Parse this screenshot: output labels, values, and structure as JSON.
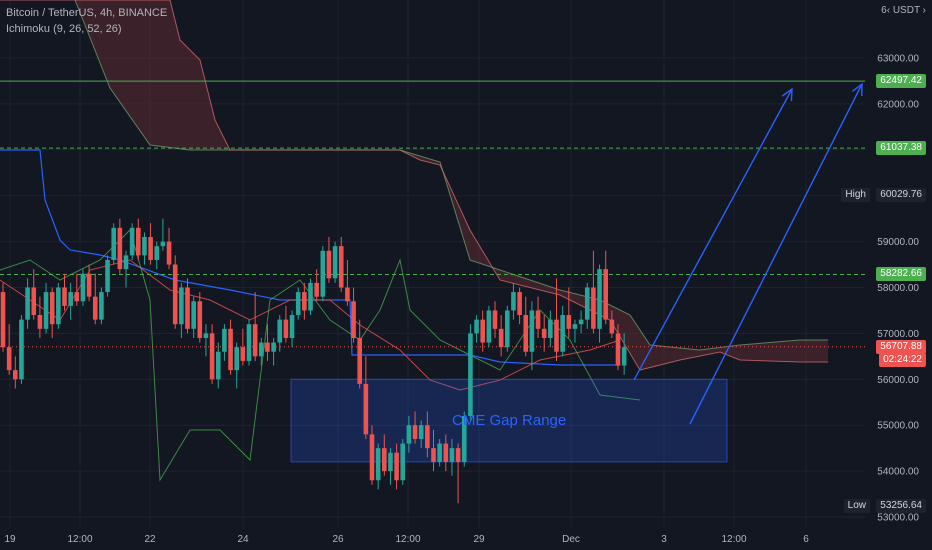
{
  "header": {
    "symbol_line": "Bitcoin / TetherUS, 4h, BINANCE",
    "indicator_line": "Ichimoku (9, 26, 52, 26)"
  },
  "price_scale": {
    "currency_label": "USDT",
    "currency_prefix": "6‹",
    "ticks": [
      "63000.00",
      "62000.00",
      "61000.00",
      "60000.00",
      "59000.00",
      "58000.00",
      "57000.00",
      "56000.00",
      "55000.00",
      "54000.00",
      "53000.00"
    ]
  },
  "time_axis": {
    "labels": [
      "19",
      "12:00",
      "22",
      "24",
      "26",
      "12:00",
      "29",
      "Dec",
      "3",
      "12:00",
      "6"
    ]
  },
  "price_labels": {
    "level_1": "62497.42",
    "level_2": "61037.38",
    "high_label": "High",
    "high_value": "60029.76",
    "level_3": "58282.66",
    "current_price": "56707.88",
    "countdown": "02:24:22",
    "low_label": "Low",
    "low_value": "53256.64"
  },
  "annotation": {
    "text": "CME Gap Range"
  },
  "colors": {
    "background": "#131722",
    "up": "#26a69a",
    "down": "#ef5350",
    "level_line": "#4caf50",
    "annotation": "#2962ff",
    "cloud_bearish": "#5d2a2f",
    "cloud_bullish": "#1e3a2c"
  },
  "chart_data": {
    "type": "candlestick",
    "title": "Bitcoin / TetherUS, 4h, BINANCE",
    "ylim": [
      53000,
      64000
    ],
    "grid": true,
    "horizontal_levels": [
      62497.42,
      61037.38,
      58282.66
    ],
    "high": 60029.76,
    "low": 53256.64,
    "last_price": 56707.88,
    "gap_range": [
      54200,
      56000
    ],
    "candles": [
      [
        57900,
        58100,
        56600,
        56700
      ],
      [
        56700,
        57200,
        56100,
        56200
      ],
      [
        56200,
        56500,
        55800,
        56000
      ],
      [
        56000,
        57400,
        55900,
        57300
      ],
      [
        57300,
        58200,
        57100,
        58000
      ],
      [
        58000,
        58400,
        57300,
        57400
      ],
      [
        57400,
        57800,
        56900,
        57100
      ],
      [
        57100,
        58100,
        57000,
        57900
      ],
      [
        57900,
        58000,
        56900,
        57200
      ],
      [
        57200,
        58100,
        57100,
        58000
      ],
      [
        58000,
        58300,
        57500,
        57600
      ],
      [
        57600,
        58100,
        57300,
        57900
      ],
      [
        57900,
        58300,
        57600,
        57700
      ],
      [
        57700,
        58400,
        57600,
        58300
      ],
      [
        58300,
        58500,
        57700,
        57800
      ],
      [
        57800,
        58300,
        57200,
        57300
      ],
      [
        57300,
        58000,
        57200,
        57900
      ],
      [
        57900,
        58700,
        57800,
        58600
      ],
      [
        58600,
        59400,
        58500,
        59300
      ],
      [
        59300,
        59500,
        58300,
        58400
      ],
      [
        58400,
        58800,
        58000,
        58700
      ],
      [
        58700,
        59400,
        58600,
        59300
      ],
      [
        59300,
        59500,
        58600,
        58700
      ],
      [
        58700,
        59200,
        58500,
        59100
      ],
      [
        59100,
        59400,
        58500,
        58600
      ],
      [
        58600,
        59000,
        58400,
        58900
      ],
      [
        58900,
        59500,
        58800,
        59000
      ],
      [
        59000,
        59300,
        58400,
        58500
      ],
      [
        58500,
        58700,
        57100,
        57200
      ],
      [
        57200,
        58100,
        56900,
        58000
      ],
      [
        58000,
        58200,
        57000,
        57100
      ],
      [
        57100,
        57800,
        56900,
        57700
      ],
      [
        57700,
        57900,
        56800,
        56900
      ],
      [
        56900,
        57200,
        56500,
        57000
      ],
      [
        57000,
        57200,
        55900,
        56000
      ],
      [
        56000,
        56800,
        55800,
        56600
      ],
      [
        56600,
        57200,
        56400,
        57100
      ],
      [
        57100,
        57300,
        56100,
        56200
      ],
      [
        56200,
        56800,
        55800,
        56700
      ],
      [
        56700,
        57100,
        56300,
        56400
      ],
      [
        56400,
        57300,
        56300,
        57200
      ],
      [
        57200,
        57900,
        56400,
        56500
      ],
      [
        56500,
        56900,
        56300,
        56800
      ],
      [
        56800,
        57200,
        56400,
        56600
      ],
      [
        56600,
        56900,
        56300,
        56800
      ],
      [
        56800,
        57400,
        56600,
        57300
      ],
      [
        57300,
        57600,
        56800,
        56900
      ],
      [
        56900,
        57500,
        56700,
        57400
      ],
      [
        57400,
        58000,
        57300,
        57900
      ],
      [
        57900,
        58100,
        57300,
        57500
      ],
      [
        57500,
        58200,
        57400,
        58100
      ],
      [
        58100,
        58400,
        57700,
        57800
      ],
      [
        57800,
        58900,
        57700,
        58800
      ],
      [
        58800,
        59100,
        58100,
        58200
      ],
      [
        58200,
        59000,
        58100,
        58900
      ],
      [
        58900,
        59100,
        57900,
        58000
      ],
      [
        58000,
        58600,
        57600,
        57700
      ],
      [
        57700,
        58000,
        56800,
        56900
      ],
      [
        56900,
        57300,
        55800,
        55900
      ],
      [
        55900,
        56500,
        54700,
        54800
      ],
      [
        54800,
        55000,
        53700,
        53800
      ],
      [
        53800,
        54600,
        53600,
        54500
      ],
      [
        54500,
        54800,
        53900,
        54000
      ],
      [
        54000,
        54500,
        53700,
        54400
      ],
      [
        54400,
        54600,
        53600,
        53800
      ],
      [
        53800,
        54700,
        53700,
        54600
      ],
      [
        54600,
        55200,
        54400,
        55000
      ],
      [
        55000,
        55300,
        54600,
        54700
      ],
      [
        54700,
        55100,
        54500,
        55000
      ],
      [
        55000,
        55300,
        54300,
        54500
      ],
      [
        54500,
        54900,
        54000,
        54200
      ],
      [
        54200,
        54700,
        54100,
        54600
      ],
      [
        54600,
        54800,
        54000,
        54200
      ],
      [
        54200,
        54700,
        53900,
        54500
      ],
      [
        54500,
        54600,
        53300,
        54200
      ],
      [
        54200,
        55300,
        54100,
        55200
      ],
      [
        55200,
        57200,
        55100,
        57000
      ],
      [
        57000,
        57400,
        56800,
        57300
      ],
      [
        57300,
        57500,
        56600,
        56800
      ],
      [
        56800,
        57600,
        56700,
        57500
      ],
      [
        57500,
        57700,
        56900,
        57100
      ],
      [
        57100,
        57400,
        56500,
        56700
      ],
      [
        56700,
        57600,
        56600,
        57500
      ],
      [
        57500,
        58100,
        57300,
        57900
      ],
      [
        57900,
        58000,
        57200,
        57400
      ],
      [
        57400,
        57800,
        56500,
        56600
      ],
      [
        56600,
        57700,
        56200,
        57500
      ],
      [
        57500,
        57800,
        56900,
        57100
      ],
      [
        57100,
        57400,
        56600,
        56900
      ],
      [
        56900,
        57500,
        56700,
        57300
      ],
      [
        57300,
        58200,
        56400,
        56600
      ],
      [
        56600,
        57600,
        56500,
        57400
      ],
      [
        57400,
        58000,
        56900,
        57100
      ],
      [
        57100,
        57300,
        56800,
        57200
      ],
      [
        57200,
        57500,
        57000,
        57300
      ],
      [
        57300,
        58100,
        57100,
        58000
      ],
      [
        58000,
        58800,
        57000,
        57100
      ],
      [
        57100,
        58500,
        56800,
        58400
      ],
      [
        58400,
        58800,
        57200,
        57300
      ],
      [
        57300,
        57500,
        56900,
        57000
      ],
      [
        57000,
        57200,
        56200,
        56300
      ],
      [
        56300,
        57000,
        56100,
        56700
      ]
    ]
  }
}
